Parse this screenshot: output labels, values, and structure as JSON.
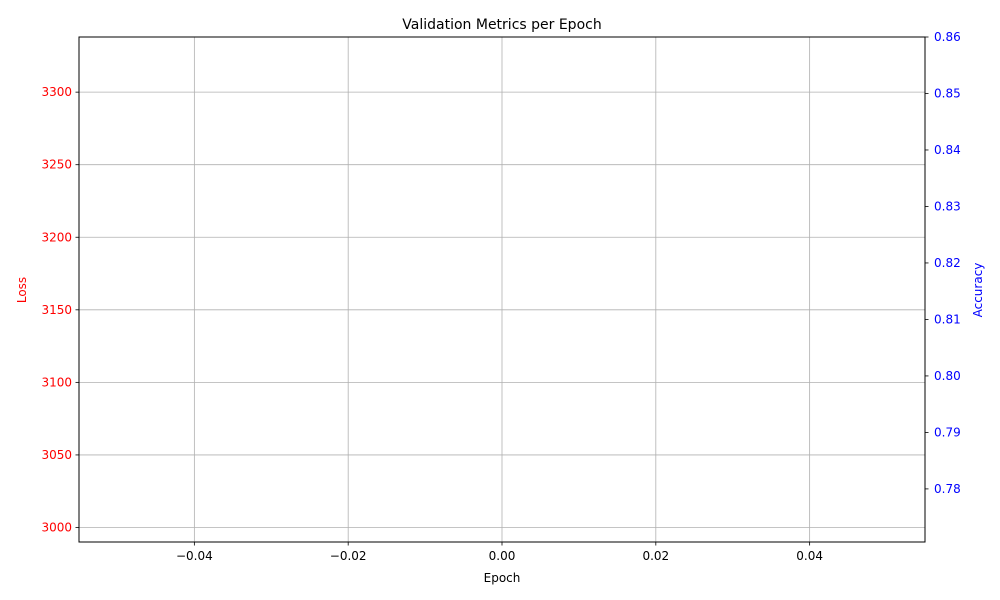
{
  "chart_data": {
    "type": "line",
    "title": "Validation Metrics per Epoch",
    "xlabel": "Epoch",
    "ylabel_left": "Loss",
    "ylabel_right": "Accuracy",
    "xlim": [
      -0.055,
      0.055
    ],
    "ylim_left": [
      2990,
      3338
    ],
    "ylim_right": [
      0.7706,
      0.86
    ],
    "x_ticks": [
      {
        "value": -0.04,
        "label": "−0.04"
      },
      {
        "value": -0.02,
        "label": "−0.02"
      },
      {
        "value": 0.0,
        "label": "0.00"
      },
      {
        "value": 0.02,
        "label": "0.02"
      },
      {
        "value": 0.04,
        "label": "0.04"
      }
    ],
    "y_ticks_left": [
      {
        "value": 3000,
        "label": "3000"
      },
      {
        "value": 3050,
        "label": "3050"
      },
      {
        "value": 3100,
        "label": "3100"
      },
      {
        "value": 3150,
        "label": "3150"
      },
      {
        "value": 3200,
        "label": "3200"
      },
      {
        "value": 3250,
        "label": "3250"
      },
      {
        "value": 3300,
        "label": "3300"
      }
    ],
    "y_ticks_right": [
      {
        "value": 0.78,
        "label": "0.78"
      },
      {
        "value": 0.79,
        "label": "0.79"
      },
      {
        "value": 0.8,
        "label": "0.80"
      },
      {
        "value": 0.81,
        "label": "0.81"
      },
      {
        "value": 0.82,
        "label": "0.82"
      },
      {
        "value": 0.83,
        "label": "0.83"
      },
      {
        "value": 0.84,
        "label": "0.84"
      },
      {
        "value": 0.85,
        "label": "0.85"
      },
      {
        "value": 0.86,
        "label": "0.86"
      }
    ],
    "grid": true,
    "series": [],
    "colors": {
      "left_axis": "#ff0000",
      "right_axis": "#0000ff",
      "grid": "#b0b0b0",
      "text": "#000000"
    }
  }
}
